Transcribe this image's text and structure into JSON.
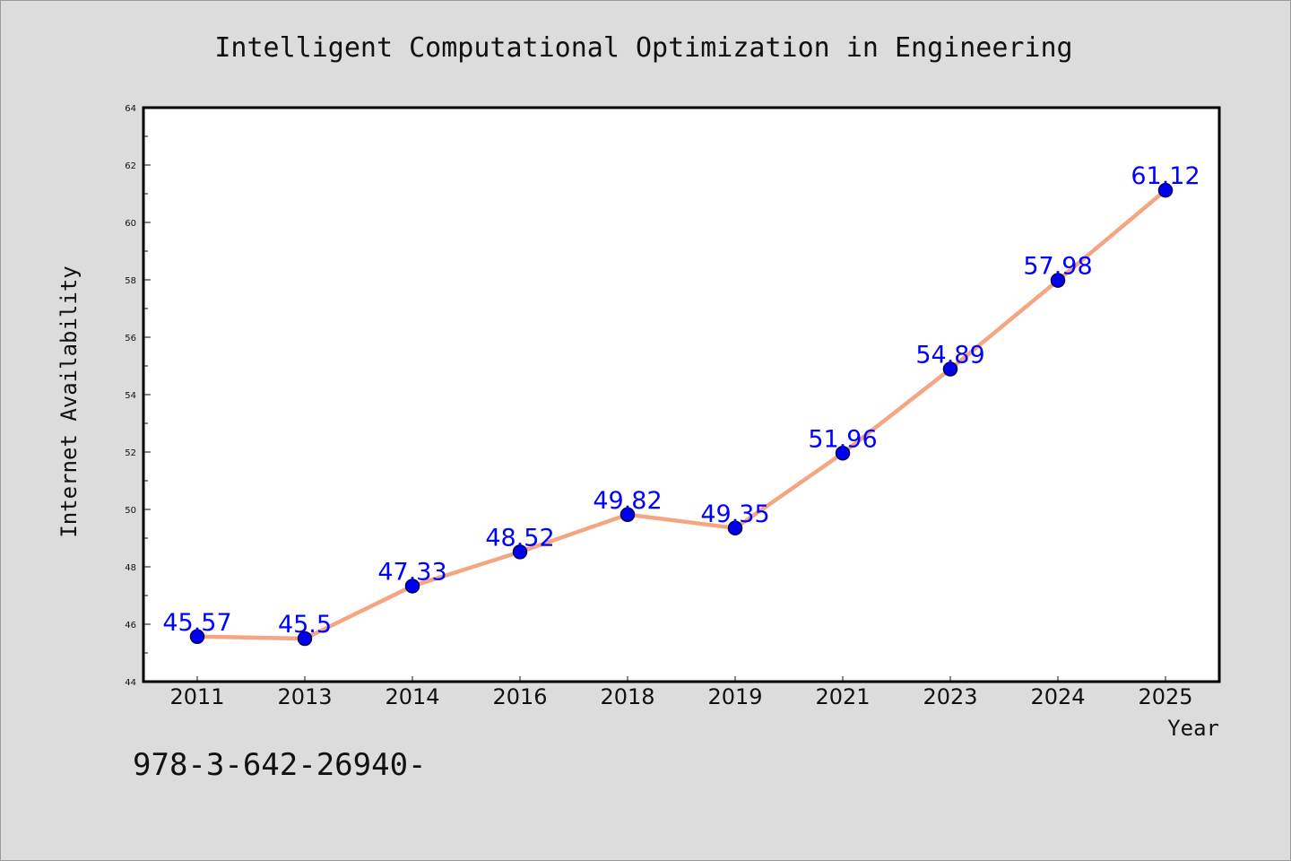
{
  "chart_data": {
    "type": "line",
    "title": "Intelligent Computational Optimization in Engineering",
    "xlabel": "Year",
    "ylabel": "Internet Availability",
    "categories": [
      "2011",
      "2013",
      "2014",
      "2016",
      "2018",
      "2019",
      "2021",
      "2023",
      "2024",
      "2025"
    ],
    "series": [
      {
        "values": [
          45.57,
          45.5,
          47.33,
          48.52,
          49.82,
          49.35,
          51.96,
          54.89,
          57.98,
          61.12
        ],
        "labels": [
          "45.57",
          "45.5",
          "47.33",
          "48.52",
          "49.82",
          "49.35",
          "51.96",
          "54.89",
          "57.98",
          "61.12"
        ]
      }
    ],
    "ylim": [
      44,
      64
    ],
    "yticks": [
      "44",
      "46",
      "48",
      "50",
      "52",
      "54",
      "56",
      "58",
      "60",
      "62",
      "64"
    ],
    "grid": false,
    "line_color": "#f4a582",
    "marker_color": "#0000ee",
    "label_color": "#0000ff"
  },
  "footer_text": "978-3-642-26940-"
}
